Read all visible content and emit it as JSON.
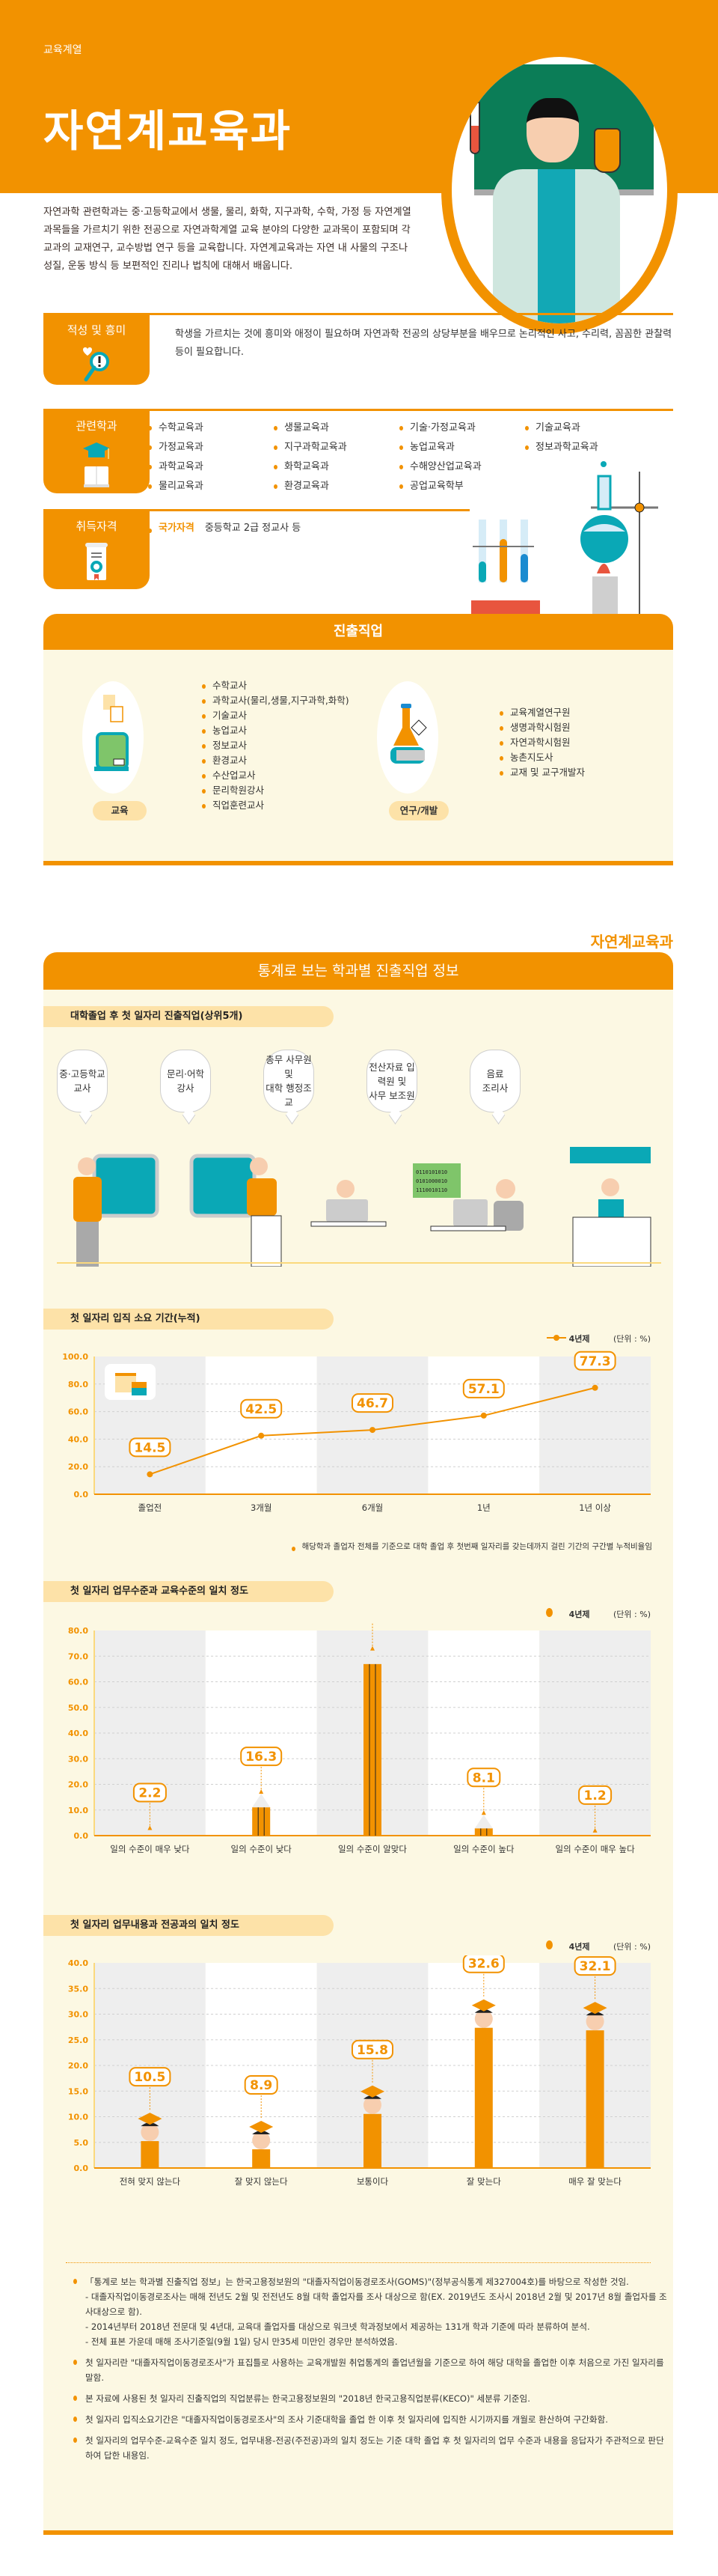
{
  "colors": {
    "accent": "#f29200",
    "panel_bg": "#fcf8e3",
    "pill_bg": "#fde2a8",
    "teal": "#0aa8b6"
  },
  "hero": {
    "category": "교육계열",
    "title": "자연계교육과",
    "intro": "자연과학 관련학과는 중·고등학교에서 생물, 물리, 화학, 지구과학, 수학, 가정 등 자연계열 과목들을 가르치기 위한 전공으로 자연과학계열 교육 분야의 다양한 교과목이 포함되며 각 교과의 교재연구, 교수방법 연구 등을 교육합니다. 자연계교육과는 자연 내 사물의 구조나 성질, 운동 방식 등 보편적인 진리나 법칙에 대해서 배웁니다."
  },
  "aptitude": {
    "label": "적성 및 흥미",
    "icon": "heart-magnifier-icon",
    "text": "학생을 가르치는 것에 흥미와 애정이 필요하며 자연과학 전공의 상당부분을 배우므로 논리적인 사고, 수리력, 꼼꼼한 관찰력 등이 필요합니다."
  },
  "related": {
    "label": "관련학과",
    "icon": "graduation-cap-book-icon",
    "columns": [
      [
        "수학교육과",
        "가정교육과",
        "과학교육과",
        "물리교육과"
      ],
      [
        "생물교육과",
        "지구과학교육과",
        "화학교육과",
        "환경교육과"
      ],
      [
        "기술·가정교육과",
        "농업교육과",
        "수해양산업교육과",
        "공업교육학부"
      ],
      [
        "기술교육과",
        "정보과학교육과"
      ]
    ]
  },
  "qualification": {
    "label": "취득자격",
    "icon": "certificate-icon",
    "type": "국가자격",
    "value": "중등학교 2급 정교사 등"
  },
  "careers": {
    "title": "진출직업",
    "groups": [
      {
        "category": "교육",
        "icon": "blackboard-speech-icon",
        "jobs": [
          "수학교사",
          "과학교사(물리,생물,지구과학,화학)",
          "기술교사",
          "농업교사",
          "정보교사",
          "환경교사",
          "수산업교사",
          "문리학원강사",
          "직업훈련교사"
        ]
      },
      {
        "category": "연구/개발",
        "icon": "flask-book-icon",
        "jobs": [
          "교육계열연구원",
          "생명과학시험원",
          "자연과학시험원",
          "농촌지도사",
          "교재 및 교구개발자"
        ]
      }
    ]
  },
  "stats": {
    "brand": "자연계교육과",
    "title": "통계로 보는 학과별 진출직업 정보",
    "top_jobs": {
      "title": "대학졸업 후 첫 일자리 진출직업(상위5개)",
      "items": [
        [
          "중·고등학교",
          "교사"
        ],
        [
          "문리·어학",
          "강사"
        ],
        [
          "총무 사무원 및",
          "대학 행정조교"
        ],
        [
          "전산자료 입력원 및",
          "사무 보조원"
        ],
        [
          "음료",
          "조리사"
        ]
      ],
      "screen_code": [
        "0110101010",
        "0101000010",
        "1110010110"
      ]
    },
    "legend_label": "4년제",
    "unit": "(단위 : %)",
    "footnote_chart1": "해당학과 졸업자 전체를 기준으로 대학 졸업 후 첫번째 일자리를 갖는데까지 걸린 기간의 구간별 누적비율임"
  },
  "chart_data": [
    {
      "type": "line",
      "title": "첫 일자리 입직 소요 기간(누적)",
      "categories": [
        "졸업전",
        "3개월",
        "6개월",
        "1년",
        "1년 이상"
      ],
      "series": [
        {
          "name": "4년제",
          "values": [
            14.5,
            42.5,
            46.7,
            57.1,
            77.3
          ]
        }
      ],
      "yticks": [
        "100.0",
        "80.0",
        "60.0",
        "40.0",
        "20.0",
        "0.0"
      ],
      "ylim": [
        0,
        100
      ],
      "ylabel": "(단위 : %)",
      "legend_position": "top-right",
      "grid": true
    },
    {
      "type": "bar",
      "title": "첫 일자리 업무수준과 교육수준의 일치 정도",
      "categories": [
        "일의 수준이 매우 낮다",
        "일의 수준이 낮다",
        "일의 수준이 알맞다",
        "일의 수준이 높다",
        "일의 수준이 매우 높다"
      ],
      "series": [
        {
          "name": "4년제",
          "values": [
            2.2,
            16.3,
            72.2,
            8.1,
            1.2
          ]
        }
      ],
      "yticks": [
        "80.0",
        "70.0",
        "60.0",
        "50.0",
        "40.0",
        "30.0",
        "20.0",
        "10.0",
        "0.0"
      ],
      "ylim": [
        0,
        80
      ],
      "ylabel": "(단위 : %)",
      "legend_position": "top-right",
      "grid": true
    },
    {
      "type": "bar",
      "title": "첫 일자리 업무내용과 전공과의 일치 정도",
      "categories": [
        "전혀 맞지 않는다",
        "잘 맞지 않는다",
        "보통이다",
        "잘 맞는다",
        "매우 잘 맞는다"
      ],
      "series": [
        {
          "name": "4년제",
          "values": [
            10.5,
            8.9,
            15.8,
            32.6,
            32.1
          ]
        }
      ],
      "yticks": [
        "40.0",
        "35.0",
        "30.0",
        "25.0",
        "20.0",
        "15.0",
        "10.0",
        "5.0",
        "0.0"
      ],
      "ylim": [
        0,
        40
      ],
      "ylabel": "(단위 : %)",
      "legend_position": "top-right",
      "grid": true
    }
  ],
  "notes": {
    "items": [
      "「통계로 보는 학과별 진출직업 정보」는 한국고용정보원의 \"대졸자직업이동경로조사(GOMS)\"(정부공식통계 제327004호)를 바탕으로 작성한 것임.",
      "첫 일자리란 \"대졸자직업이동경로조사\"가 표집틀로 사용하는 교육개발원 취업통계의 졸업년월을 기준으로 하여 해당 대학을 졸업한 이후 처음으로 가진 일자리를 말함.",
      "본 자료에 사용된 첫 일자리 진출직업의 직업분류는 한국고용정보원의 \"2018년 한국고용직업분류(KECO)\" 세분류 기준임.",
      "첫 일자리 입직소요기간은 \"대졸자직업이동경로조사\"의 조사 기준대학을 졸업 한 이후 첫 일자리에 입직한 시기까지를 개월로 환산하여 구간화함.",
      "첫 일자리의 업무수준-교육수준 일치 정도, 업무내용-전공(주전공)과의 일치 정도는 기준 대학 졸업 후 첫 일자리의 업무 수준과 내용을 응답자가 주관적으로 판단하여 답한 내용임."
    ],
    "sub_items": [
      "- 대졸자직업이동경로조사는 매해 전년도 2월 및 전전년도 8월 대학 졸업자를 조사 대상으로 함(EX. 2019년도 조사시 2018년 2월 및 2017년 8월 졸업자를 조사대상으로 함).",
      "- 2014년부터 2018년 전문대 및 4년대, 교육대 졸업자를 대상으로 워크넷 학과정보에서 제공하는 131개 학과 기준에 따라 분류하여 분석.",
      "- 전체 표본 가운데 매해 조사기준일(9월 1일) 당시 만35세 미만인 경우만 분석하였음."
    ]
  }
}
